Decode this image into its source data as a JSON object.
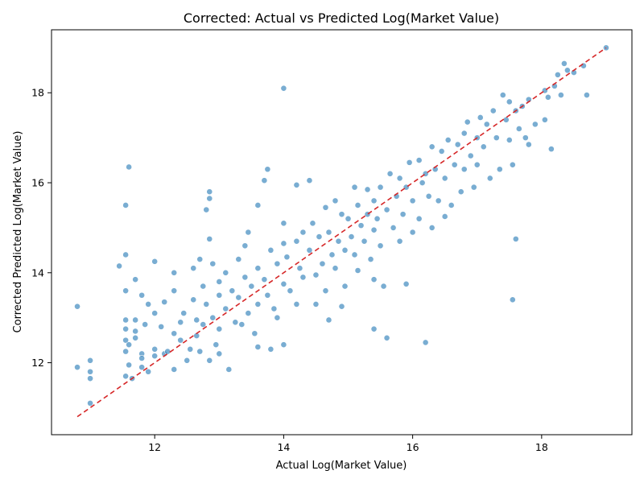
{
  "chart_data": {
    "type": "scatter",
    "title": "Corrected: Actual vs Predicted Log(Market Value)",
    "xlabel": "Actual Log(Market Value)",
    "ylabel": "Corrected Predicted Log(Market Value)",
    "xlim": [
      10.4,
      19.4
    ],
    "ylim": [
      10.4,
      19.4
    ],
    "xticks": [
      12,
      14,
      16,
      18
    ],
    "yticks": [
      12,
      14,
      16,
      18
    ],
    "xtick_labels": [
      "12",
      "14",
      "16",
      "18"
    ],
    "ytick_labels": [
      "12",
      "14",
      "16",
      "18"
    ],
    "grid": false,
    "point_color": "#1f77b4",
    "reference_line": {
      "style": "dashed",
      "color": "#d62728",
      "from": [
        10.8,
        10.8
      ],
      "to": [
        19.0,
        19.0
      ]
    },
    "series": [
      {
        "points": [
          [
            10.8,
            13.25
          ],
          [
            10.8,
            11.9
          ],
          [
            11.0,
            12.05
          ],
          [
            11.0,
            11.8
          ],
          [
            11.0,
            11.65
          ],
          [
            11.0,
            11.1
          ],
          [
            11.45,
            14.15
          ],
          [
            11.55,
            15.5
          ],
          [
            11.55,
            14.4
          ],
          [
            11.55,
            13.6
          ],
          [
            11.55,
            12.95
          ],
          [
            11.55,
            12.75
          ],
          [
            11.55,
            12.5
          ],
          [
            11.55,
            12.25
          ],
          [
            11.55,
            11.7
          ],
          [
            11.6,
            16.35
          ],
          [
            11.6,
            12.4
          ],
          [
            11.6,
            11.95
          ],
          [
            11.65,
            11.65
          ],
          [
            11.7,
            13.85
          ],
          [
            11.7,
            12.95
          ],
          [
            11.7,
            12.7
          ],
          [
            11.7,
            12.55
          ],
          [
            11.8,
            13.5
          ],
          [
            11.8,
            12.2
          ],
          [
            11.8,
            12.1
          ],
          [
            11.8,
            11.9
          ],
          [
            11.85,
            12.85
          ],
          [
            11.9,
            13.3
          ],
          [
            11.9,
            11.8
          ],
          [
            12.0,
            14.25
          ],
          [
            12.0,
            13.1
          ],
          [
            12.0,
            12.3
          ],
          [
            12.0,
            12.15
          ],
          [
            12.1,
            12.8
          ],
          [
            12.15,
            13.35
          ],
          [
            12.15,
            12.2
          ],
          [
            12.2,
            12.25
          ],
          [
            12.3,
            14.0
          ],
          [
            12.3,
            13.6
          ],
          [
            12.3,
            12.65
          ],
          [
            12.3,
            11.85
          ],
          [
            12.4,
            12.9
          ],
          [
            12.4,
            12.5
          ],
          [
            12.45,
            13.1
          ],
          [
            12.5,
            12.05
          ],
          [
            12.55,
            12.3
          ],
          [
            12.6,
            14.1
          ],
          [
            12.6,
            13.4
          ],
          [
            12.65,
            12.95
          ],
          [
            12.65,
            12.6
          ],
          [
            12.7,
            14.3
          ],
          [
            12.7,
            12.25
          ],
          [
            12.75,
            13.7
          ],
          [
            12.75,
            12.85
          ],
          [
            12.8,
            15.4
          ],
          [
            12.8,
            13.3
          ],
          [
            12.85,
            15.8
          ],
          [
            12.85,
            15.65
          ],
          [
            12.85,
            14.75
          ],
          [
            12.85,
            12.05
          ],
          [
            12.9,
            14.2
          ],
          [
            12.9,
            13.0
          ],
          [
            12.95,
            12.4
          ],
          [
            13.0,
            13.8
          ],
          [
            13.0,
            13.5
          ],
          [
            13.0,
            12.75
          ],
          [
            13.0,
            12.2
          ],
          [
            13.1,
            14.0
          ],
          [
            13.1,
            13.2
          ],
          [
            13.15,
            11.85
          ],
          [
            13.2,
            13.6
          ],
          [
            13.25,
            12.9
          ],
          [
            13.3,
            14.3
          ],
          [
            13.3,
            13.45
          ],
          [
            13.35,
            12.85
          ],
          [
            13.4,
            14.6
          ],
          [
            13.4,
            13.9
          ],
          [
            13.45,
            14.9
          ],
          [
            13.45,
            13.1
          ],
          [
            13.5,
            13.7
          ],
          [
            13.55,
            12.65
          ],
          [
            13.6,
            15.5
          ],
          [
            13.6,
            14.1
          ],
          [
            13.6,
            13.3
          ],
          [
            13.6,
            12.35
          ],
          [
            13.7,
            16.05
          ],
          [
            13.7,
            13.85
          ],
          [
            13.75,
            16.3
          ],
          [
            13.75,
            13.5
          ],
          [
            13.8,
            14.5
          ],
          [
            13.8,
            12.3
          ],
          [
            13.85,
            13.2
          ],
          [
            13.9,
            14.2
          ],
          [
            13.9,
            13.0
          ],
          [
            14.0,
            18.1
          ],
          [
            14.0,
            15.1
          ],
          [
            14.0,
            14.65
          ],
          [
            14.0,
            13.75
          ],
          [
            14.0,
            12.4
          ],
          [
            14.05,
            14.35
          ],
          [
            14.1,
            13.6
          ],
          [
            14.2,
            15.95
          ],
          [
            14.2,
            14.7
          ],
          [
            14.2,
            13.3
          ],
          [
            14.25,
            14.1
          ],
          [
            14.3,
            14.9
          ],
          [
            14.3,
            13.9
          ],
          [
            14.4,
            16.05
          ],
          [
            14.4,
            14.5
          ],
          [
            14.45,
            15.1
          ],
          [
            14.5,
            13.95
          ],
          [
            14.5,
            13.3
          ],
          [
            14.55,
            14.8
          ],
          [
            14.6,
            14.2
          ],
          [
            14.65,
            15.45
          ],
          [
            14.65,
            13.6
          ],
          [
            14.7,
            14.9
          ],
          [
            14.7,
            12.95
          ],
          [
            14.75,
            14.4
          ],
          [
            14.8,
            15.6
          ],
          [
            14.8,
            14.1
          ],
          [
            14.85,
            14.7
          ],
          [
            14.9,
            15.3
          ],
          [
            14.9,
            13.25
          ],
          [
            14.95,
            14.5
          ],
          [
            14.95,
            13.7
          ],
          [
            15.0,
            15.2
          ],
          [
            15.05,
            14.8
          ],
          [
            15.1,
            15.9
          ],
          [
            15.1,
            14.4
          ],
          [
            15.15,
            15.5
          ],
          [
            15.15,
            14.05
          ],
          [
            15.2,
            15.05
          ],
          [
            15.25,
            14.7
          ],
          [
            15.3,
            15.85
          ],
          [
            15.3,
            15.3
          ],
          [
            15.35,
            14.3
          ],
          [
            15.4,
            15.6
          ],
          [
            15.4,
            14.95
          ],
          [
            15.4,
            13.85
          ],
          [
            15.4,
            12.75
          ],
          [
            15.45,
            15.2
          ],
          [
            15.5,
            15.9
          ],
          [
            15.5,
            14.6
          ],
          [
            15.55,
            13.7
          ],
          [
            15.6,
            15.4
          ],
          [
            15.6,
            12.55
          ],
          [
            15.65,
            16.2
          ],
          [
            15.7,
            15.0
          ],
          [
            15.75,
            15.7
          ],
          [
            15.8,
            16.1
          ],
          [
            15.8,
            14.7
          ],
          [
            15.85,
            15.3
          ],
          [
            15.9,
            15.9
          ],
          [
            15.9,
            13.75
          ],
          [
            15.95,
            16.45
          ],
          [
            16.0,
            15.6
          ],
          [
            16.0,
            14.9
          ],
          [
            16.1,
            16.5
          ],
          [
            16.1,
            15.2
          ],
          [
            16.15,
            16.0
          ],
          [
            16.2,
            16.2
          ],
          [
            16.2,
            12.45
          ],
          [
            16.25,
            15.7
          ],
          [
            16.3,
            16.8
          ],
          [
            16.3,
            15.0
          ],
          [
            16.35,
            16.3
          ],
          [
            16.4,
            15.6
          ],
          [
            16.45,
            16.7
          ],
          [
            16.5,
            16.1
          ],
          [
            16.5,
            15.25
          ],
          [
            16.55,
            16.95
          ],
          [
            16.6,
            15.5
          ],
          [
            16.65,
            16.4
          ],
          [
            16.7,
            16.85
          ],
          [
            16.75,
            15.8
          ],
          [
            16.8,
            17.1
          ],
          [
            16.8,
            16.3
          ],
          [
            16.85,
            17.35
          ],
          [
            16.9,
            16.6
          ],
          [
            16.95,
            15.9
          ],
          [
            17.0,
            17.0
          ],
          [
            17.0,
            16.4
          ],
          [
            17.05,
            17.45
          ],
          [
            17.1,
            16.8
          ],
          [
            17.15,
            17.3
          ],
          [
            17.2,
            16.1
          ],
          [
            17.25,
            17.6
          ],
          [
            17.3,
            17.0
          ],
          [
            17.35,
            16.3
          ],
          [
            17.4,
            17.95
          ],
          [
            17.45,
            17.4
          ],
          [
            17.5,
            17.8
          ],
          [
            17.5,
            16.95
          ],
          [
            17.55,
            16.4
          ],
          [
            17.55,
            13.4
          ],
          [
            17.6,
            17.6
          ],
          [
            17.6,
            14.75
          ],
          [
            17.65,
            17.2
          ],
          [
            17.7,
            17.7
          ],
          [
            17.75,
            17.0
          ],
          [
            17.8,
            16.85
          ],
          [
            17.8,
            17.85
          ],
          [
            17.9,
            17.3
          ],
          [
            18.05,
            18.05
          ],
          [
            18.05,
            17.4
          ],
          [
            18.1,
            17.9
          ],
          [
            18.15,
            16.75
          ],
          [
            18.2,
            18.15
          ],
          [
            18.25,
            18.4
          ],
          [
            18.3,
            17.95
          ],
          [
            18.35,
            18.65
          ],
          [
            18.4,
            18.5
          ],
          [
            18.5,
            18.45
          ],
          [
            18.65,
            18.6
          ],
          [
            18.7,
            17.95
          ],
          [
            19.0,
            19.0
          ]
        ]
      }
    ]
  }
}
